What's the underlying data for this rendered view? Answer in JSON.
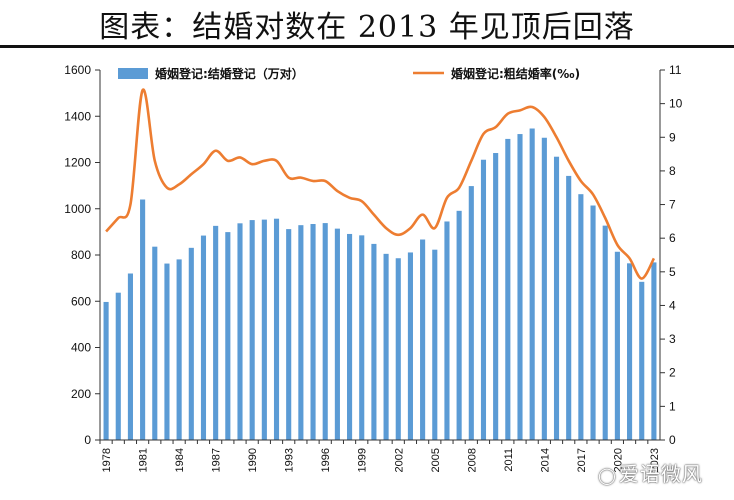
{
  "page": {
    "title": "图表：结婚对数在 2013 年见顶后回落",
    "watermark": "爱语微风",
    "watermark_icon": "wechat-icon"
  },
  "chart_data": {
    "type": "bar+line",
    "years": [
      1978,
      1979,
      1980,
      1981,
      1982,
      1983,
      1984,
      1985,
      1986,
      1987,
      1988,
      1989,
      1990,
      1991,
      1992,
      1993,
      1994,
      1995,
      1996,
      1997,
      1998,
      1999,
      2000,
      2001,
      2002,
      2003,
      2004,
      2005,
      2006,
      2007,
      2008,
      2009,
      2010,
      2011,
      2012,
      2013,
      2014,
      2015,
      2016,
      2017,
      2018,
      2019,
      2020,
      2021,
      2022,
      2023
    ],
    "x_tick_labels": [
      "1978",
      "1981",
      "1984",
      "1987",
      "1990",
      "1993",
      "1996",
      "1999",
      "2002",
      "2005",
      "2008",
      "2011",
      "2014",
      "2017",
      "2020",
      "2023"
    ],
    "series": [
      {
        "name": "婚姻登记:结婚登记（万对）",
        "type": "bar",
        "axis": "left",
        "color": "#5b9bd5",
        "values": [
          597,
          637,
          720,
          1040,
          836,
          763,
          781,
          831,
          884,
          926,
          899,
          937,
          951,
          953,
          957,
          912,
          929,
          934,
          938,
          914,
          891,
          885,
          848,
          805,
          786,
          811,
          867,
          823,
          945,
          991,
          1098,
          1212,
          1241,
          1302,
          1323,
          1347,
          1307,
          1225,
          1142,
          1063,
          1014,
          927,
          814,
          764,
          684,
          768
        ]
      },
      {
        "name": "婚姻登记:粗结婚率(‰)",
        "type": "line",
        "axis": "right",
        "color": "#ed7d31",
        "values": [
          6.2,
          6.6,
          7.0,
          10.4,
          8.3,
          7.5,
          7.6,
          7.9,
          8.2,
          8.6,
          8.3,
          8.4,
          8.2,
          8.3,
          8.3,
          7.8,
          7.8,
          7.7,
          7.7,
          7.4,
          7.2,
          7.1,
          6.7,
          6.3,
          6.1,
          6.3,
          6.7,
          6.3,
          7.2,
          7.5,
          8.3,
          9.1,
          9.3,
          9.7,
          9.8,
          9.9,
          9.6,
          9.0,
          8.3,
          7.7,
          7.3,
          6.6,
          5.8,
          5.4,
          4.8,
          5.4
        ]
      }
    ],
    "y_left": {
      "min": 0,
      "max": 1600,
      "ticks": [
        "0",
        "200",
        "400",
        "600",
        "800",
        "1000",
        "1200",
        "1400",
        "1600"
      ]
    },
    "y_right": {
      "min": 0,
      "max": 11,
      "ticks": [
        "0",
        "1",
        "2",
        "3",
        "4",
        "5",
        "6",
        "7",
        "8",
        "9",
        "10",
        "11"
      ]
    },
    "legend_position": "top",
    "grid": false
  }
}
